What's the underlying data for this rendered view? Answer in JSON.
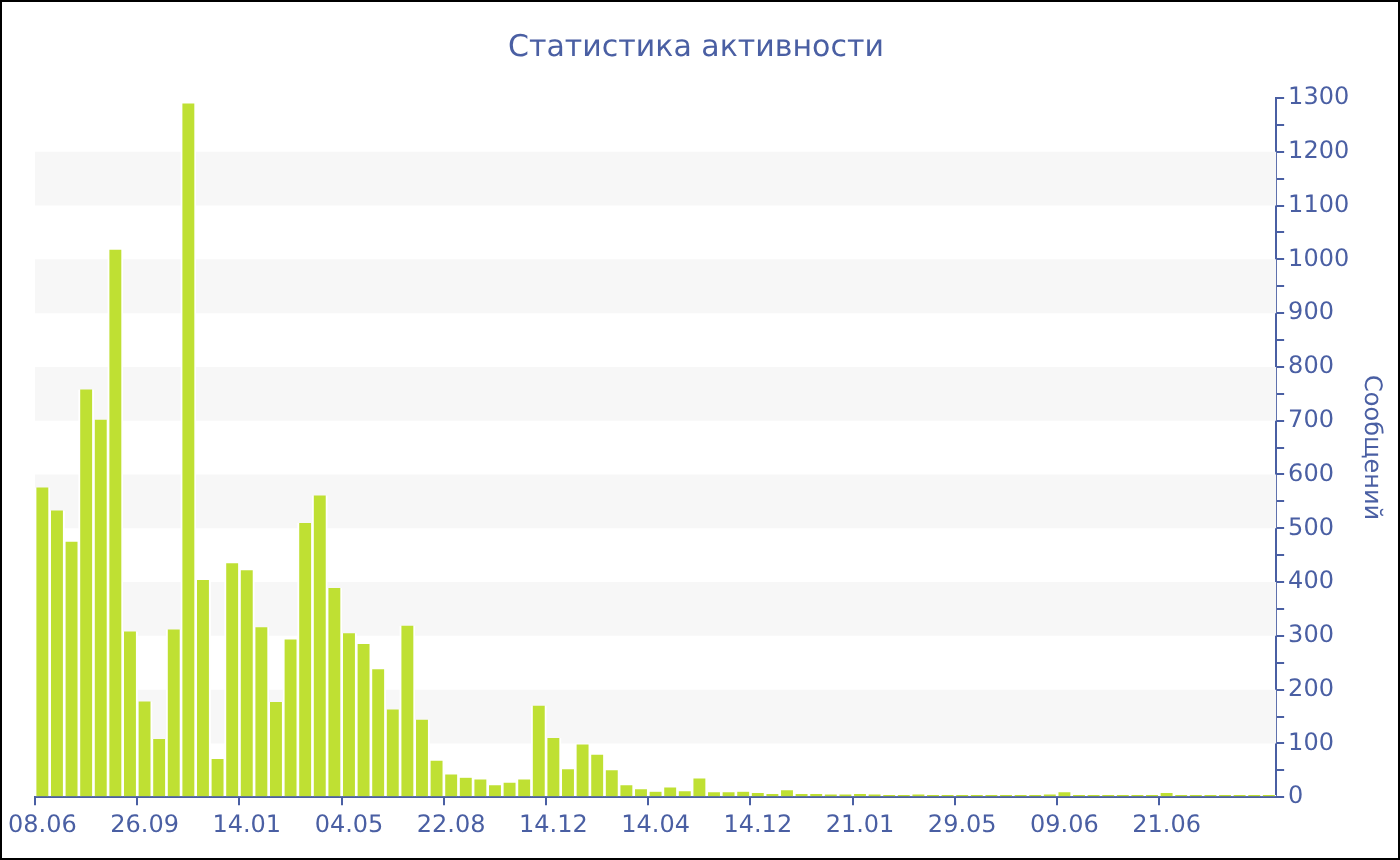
{
  "chart_data": {
    "type": "bar",
    "title": "Статистика активности",
    "y2label": "Сообщений",
    "categories": [
      "08.06",
      null,
      null,
      null,
      null,
      null,
      null,
      "26.09",
      null,
      null,
      null,
      null,
      null,
      null,
      "14.01",
      null,
      null,
      null,
      null,
      null,
      null,
      "04.05",
      null,
      null,
      null,
      null,
      null,
      null,
      "22.08",
      null,
      null,
      null,
      null,
      null,
      null,
      "14.12",
      null,
      null,
      null,
      null,
      null,
      null,
      "14.04",
      null,
      null,
      null,
      null,
      null,
      null,
      "14.12",
      null,
      null,
      null,
      null,
      null,
      null,
      "21.01",
      null,
      null,
      null,
      null,
      null,
      null,
      "29.05",
      null,
      null,
      null,
      null,
      null,
      null,
      "09.06",
      null,
      null,
      null,
      null,
      null,
      null,
      "21.06",
      null,
      null,
      null,
      null,
      null,
      null,
      null
    ],
    "series": [
      {
        "color": "#bfe033",
        "axis": "y2",
        "values": [
          576,
          533,
          475,
          758,
          702,
          1018,
          308,
          178,
          108,
          312,
          1290,
          404,
          71,
          435,
          422,
          316,
          177,
          293,
          510,
          561,
          389,
          305,
          285,
          238,
          163,
          319,
          144,
          68,
          42,
          36,
          33,
          22,
          27,
          33,
          170,
          110,
          52,
          98,
          79,
          50,
          22,
          15,
          10,
          18,
          11,
          35,
          9,
          9,
          10,
          8,
          6,
          13,
          6,
          6,
          5,
          5,
          6,
          5,
          4,
          4,
          5,
          4,
          4,
          4,
          4,
          4,
          4,
          4,
          4,
          5,
          9,
          4,
          4,
          4,
          4,
          4,
          4,
          8,
          4,
          4,
          4,
          4,
          4,
          4,
          4
        ]
      }
    ],
    "y2lim": [
      0,
      1300
    ],
    "y2ticks": [
      0,
      {
        "value": 50,
        "label": null
      },
      100,
      {
        "value": 150,
        "label": null
      },
      200,
      {
        "value": 250,
        "label": null
      },
      300,
      {
        "value": 350,
        "label": null
      },
      400,
      {
        "value": 450,
        "label": null
      },
      500,
      {
        "value": 550,
        "label": null
      },
      600,
      {
        "value": 650,
        "label": null
      },
      700,
      {
        "value": 750,
        "label": null
      },
      800,
      {
        "value": 850,
        "label": null
      },
      900,
      {
        "value": 950,
        "label": null
      },
      1000,
      {
        "value": 1050,
        "label": null
      },
      1100,
      {
        "value": 1150,
        "label": null
      },
      1200,
      {
        "value": 1250,
        "label": null
      },
      1300
    ],
    "bands": [
      {
        "axis": "y2",
        "from": 100,
        "to": 200,
        "color": "#f7f7f7"
      },
      {
        "axis": "y2",
        "from": 300,
        "to": 400,
        "color": "#f7f7f7"
      },
      {
        "axis": "y2",
        "from": 500,
        "to": 600,
        "color": "#f7f7f7"
      },
      {
        "axis": "y2",
        "from": 700,
        "to": 800,
        "color": "#f7f7f7"
      },
      {
        "axis": "y2",
        "from": 900,
        "to": 1000,
        "color": "#f7f7f7"
      },
      {
        "axis": "y2",
        "from": 1100,
        "to": 1200,
        "color": "#f7f7f7"
      }
    ],
    "grid": false,
    "legend": false
  }
}
